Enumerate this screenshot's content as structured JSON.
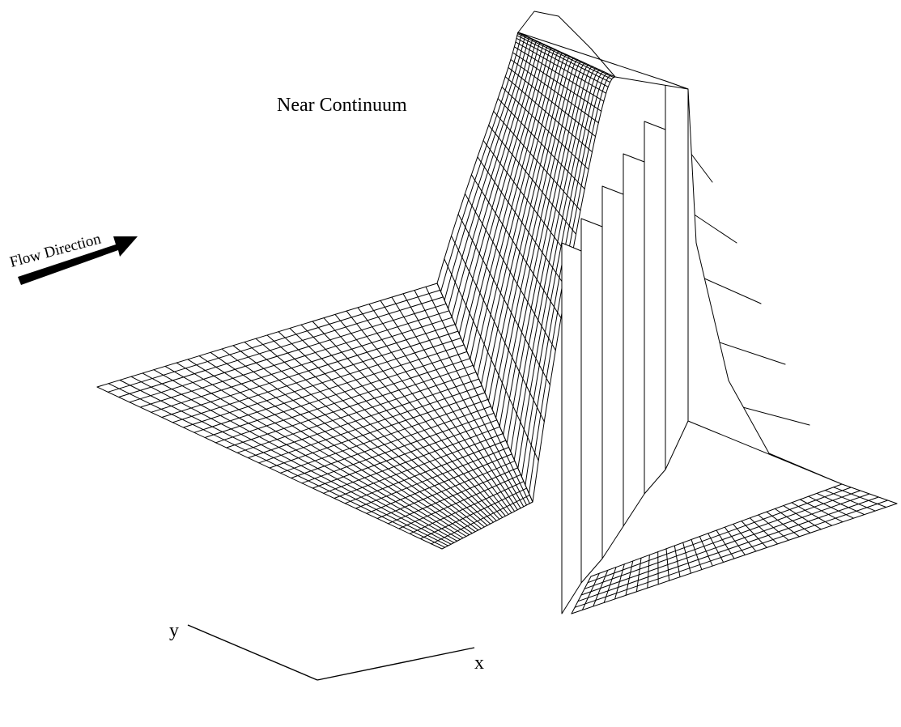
{
  "figure": {
    "title": "Near Continuum",
    "flow_label": "Flow Direction",
    "axis_y_label": "y",
    "axis_x_label": "x",
    "line_color": "#000000",
    "background": "#ffffff",
    "icons": [
      "flow-direction-arrow-icon",
      "axis-triad-icon"
    ]
  }
}
